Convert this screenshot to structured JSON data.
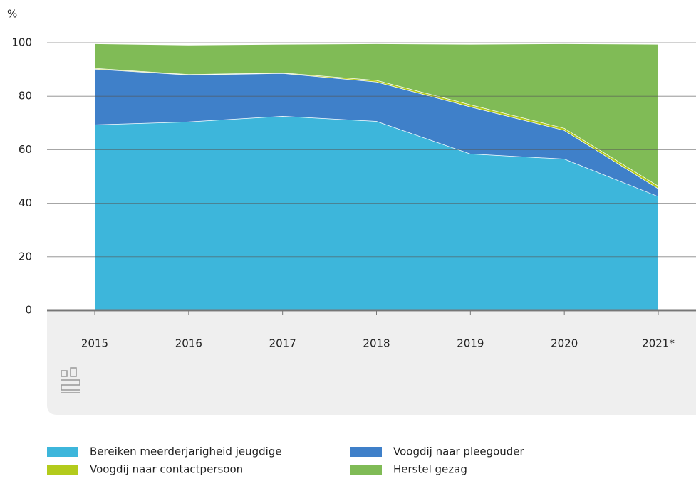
{
  "chart_data": {
    "type": "stacked_area",
    "y_axis_label": "%",
    "categories": [
      "2015",
      "2016",
      "2017",
      "2018",
      "2019",
      "2020",
      "2021*"
    ],
    "series": [
      {
        "name": "Bereiken meerderjarigheid jeugdige",
        "color": "#3db6db",
        "values": [
          69.4,
          70.5,
          72.6,
          70.7,
          58.5,
          56.6,
          42.6
        ]
      },
      {
        "name": "Voogdij naar pleegouder",
        "color": "#3f80c9",
        "values": [
          20.8,
          17.5,
          16.0,
          14.7,
          17.6,
          10.7,
          2.9
        ]
      },
      {
        "name": "Voogdij naar contactpersoon",
        "color": "#b3cb1c",
        "values": [
          0.3,
          0.2,
          0.2,
          0.6,
          0.8,
          0.8,
          1.0
        ]
      },
      {
        "name": "Herstel gezag",
        "color": "#80bb56",
        "values": [
          9.2,
          11.0,
          10.7,
          13.7,
          22.6,
          31.6,
          53.0
        ]
      }
    ],
    "ylim": [
      0,
      100
    ],
    "yticks": [
      0,
      20,
      40,
      60,
      80,
      100
    ],
    "grid": true
  }
}
